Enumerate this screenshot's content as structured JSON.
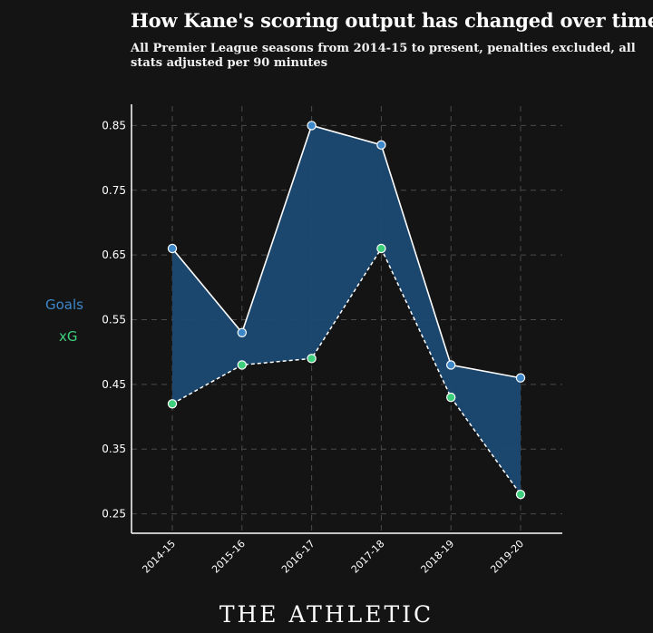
{
  "title": "How Kane's scoring output has changed over time",
  "subtitle": "All Premier League seasons from 2014-15 to present, penalties excluded, all stats adjusted per 90 minutes",
  "legend": {
    "goals": "Goals",
    "xg": "xG"
  },
  "brand": "THE ATHLETIC",
  "colors": {
    "background": "#141414",
    "goals": "#3d87c9",
    "xg": "#3ecf7c",
    "fill": "#1b4a73",
    "grid": "#4a4a4a",
    "axis": "#ffffff"
  },
  "chart_data": {
    "type": "area",
    "categories": [
      "2014-15",
      "2015-16",
      "2016-17",
      "2017-18",
      "2018-19",
      "2019-20"
    ],
    "series": [
      {
        "name": "Goals",
        "values": [
          0.66,
          0.53,
          0.85,
          0.82,
          0.48,
          0.46
        ]
      },
      {
        "name": "xG",
        "values": [
          0.42,
          0.48,
          0.49,
          0.66,
          0.43,
          0.28
        ]
      }
    ],
    "yticks": [
      "0.25",
      "0.35",
      "0.45",
      "0.55",
      "0.65",
      "0.75",
      "0.85"
    ],
    "ylim": [
      0.22,
      0.88
    ],
    "grid": true,
    "legend_position": "left"
  }
}
